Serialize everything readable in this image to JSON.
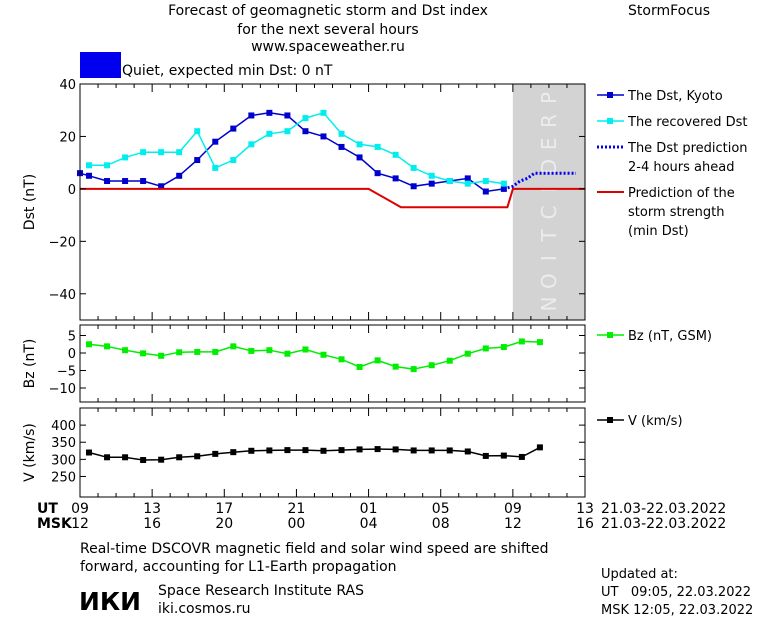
{
  "header": {
    "title_lines": [
      "Forecast of geomagnetic storm and Dst index",
      "for the next several hours",
      "www.spaceweather.ru"
    ],
    "brand": "StormFocus",
    "status_text": "Quiet, expected min Dst: 0 nT",
    "status_color": "#0000ee"
  },
  "legend": {
    "dst_kyoto": "The Dst, Kyoto",
    "dst_recovered": "The recovered Dst",
    "dst_prediction": [
      "The Dst prediction",
      "2-4 hours ahead"
    ],
    "storm_strength": [
      "Prediction of the",
      "storm strength",
      "(min Dst)"
    ],
    "bz": "Bz (nT, GSM)",
    "v": "V (km/s)"
  },
  "time_axis": {
    "ut_label": "UT",
    "msk_label": "MSK",
    "ut_ticks": [
      "09",
      "13",
      "17",
      "21",
      "01",
      "05",
      "09",
      "13"
    ],
    "msk_ticks": [
      "12",
      "16",
      "20",
      "00",
      "04",
      "08",
      "12",
      "16"
    ],
    "date_range": "21.03-22.03.2022",
    "prediction_label": "PREDICTION"
  },
  "footer": {
    "note_lines": [
      "Real-time DSCOVR magnetic field and solar wind speed are shifted",
      "forward, accounting for L1-Earth propagation"
    ],
    "logo_text": "ИКИ",
    "institute": "Space Research Institute RAS",
    "website": "iki.cosmos.ru",
    "updated_lines": [
      "Updated at:",
      "UT   09:05, 22.03.2022",
      "MSK 12:05, 22.03.2022"
    ]
  },
  "colors": {
    "dst_kyoto": "#0000cc",
    "dst_recovered": "#00eeee",
    "dst_prediction": "#0000ee",
    "storm_strength": "#dd0000",
    "bz": "#00ee00",
    "v": "#000000",
    "prediction_band": "#d3d3d3"
  },
  "chart_data": [
    {
      "type": "line",
      "ylabel": "Dst (nT)",
      "x_unit": "hours since 09 UT 21.03.2022",
      "xlim": [
        0,
        28
      ],
      "ylim": [
        -50,
        40
      ],
      "yticks": [
        40,
        20,
        0,
        -20,
        -40
      ],
      "prediction_band_x": [
        24,
        28
      ],
      "series": [
        {
          "name": "The Dst, Kyoto",
          "x": [
            -0.5,
            0.5,
            1.5,
            2.5,
            3.5,
            4.5,
            5.5,
            6.5,
            7.5,
            8.5,
            9.5,
            10.5,
            11.5,
            12.5,
            13.5,
            14.5,
            15.5,
            16.5,
            17.5,
            18.5,
            19.5,
            20.5,
            21.5,
            22.5,
            23.5
          ],
          "values": [
            6,
            5,
            3,
            3,
            3,
            1,
            5,
            11,
            18,
            23,
            28,
            29,
            28,
            22,
            20,
            16,
            12,
            6,
            4,
            1,
            2,
            3,
            4,
            -1,
            0
          ]
        },
        {
          "name": "The recovered Dst",
          "x": [
            0.5,
            1.5,
            2.5,
            3.5,
            4.5,
            5.5,
            6.5,
            7.5,
            8.5,
            9.5,
            10.5,
            11.5,
            12.5,
            13.5,
            14.5,
            15.5,
            16.5,
            17.5,
            18.5,
            19.5,
            20.5,
            21.5,
            22.5,
            23.5
          ],
          "values": [
            9,
            9,
            12,
            14,
            14,
            14,
            22,
            8,
            11,
            17,
            21,
            22,
            27,
            29,
            21,
            17,
            16,
            13,
            8,
            5,
            3,
            2,
            3,
            2
          ]
        },
        {
          "name": "The Dst prediction 2-4 hours ahead",
          "x": [
            23.5,
            24.0,
            24.4,
            24.8,
            25.2,
            25.6,
            26.0,
            26.4,
            26.8,
            27.2,
            27.5
          ],
          "values": [
            0,
            1,
            3,
            4,
            6,
            6,
            6,
            6,
            6,
            6,
            6
          ]
        },
        {
          "name": "Prediction of the storm strength (min Dst)",
          "x": [
            -1,
            16,
            17.8,
            23.7,
            24.0,
            28
          ],
          "values": [
            0,
            0,
            -7,
            -7,
            0,
            0
          ]
        }
      ]
    },
    {
      "type": "line",
      "ylabel": "Bz (nT)",
      "x_unit": "hours since 09 UT 21.03.2022",
      "xlim": [
        0,
        28
      ],
      "ylim": [
        -14,
        8
      ],
      "yticks": [
        5,
        0,
        -5,
        -10
      ],
      "series": [
        {
          "name": "Bz (nT, GSM)",
          "x": [
            0.5,
            1.5,
            2.5,
            3.5,
            4.5,
            5.5,
            6.5,
            7.5,
            8.5,
            9.5,
            10.5,
            11.5,
            12.5,
            13.5,
            14.5,
            15.5,
            16.5,
            17.5,
            18.5,
            19.5,
            20.5,
            21.5,
            22.5,
            23.5,
            24.5,
            25.5
          ],
          "values": [
            2.5,
            1.9,
            0.8,
            -0.1,
            -0.8,
            0.2,
            0.3,
            0.3,
            1.9,
            0.6,
            0.8,
            -0.2,
            1.0,
            -0.5,
            -1.8,
            -4.0,
            -2.1,
            -3.9,
            -4.6,
            -3.5,
            -2.2,
            -0.2,
            1.3,
            1.7,
            3.3,
            3.1
          ]
        }
      ]
    },
    {
      "type": "line",
      "ylabel": "V (km/s)",
      "x_unit": "hours since 09 UT 21.03.2022",
      "xlim": [
        0,
        28
      ],
      "ylim": [
        190,
        450
      ],
      "yticks": [
        400,
        350,
        300,
        250
      ],
      "series": [
        {
          "name": "V (km/s)",
          "x": [
            0.5,
            1.5,
            2.5,
            3.5,
            4.5,
            5.5,
            6.5,
            7.5,
            8.5,
            9.5,
            10.5,
            11.5,
            12.5,
            13.5,
            14.5,
            15.5,
            16.5,
            17.5,
            18.5,
            19.5,
            20.5,
            21.5,
            22.5,
            23.5,
            24.5,
            25.5
          ],
          "values": [
            320,
            306,
            306,
            298,
            299,
            306,
            309,
            316,
            321,
            325,
            326,
            327,
            327,
            325,
            327,
            329,
            330,
            329,
            326,
            326,
            326,
            323,
            310,
            311,
            307,
            335
          ]
        }
      ]
    }
  ]
}
